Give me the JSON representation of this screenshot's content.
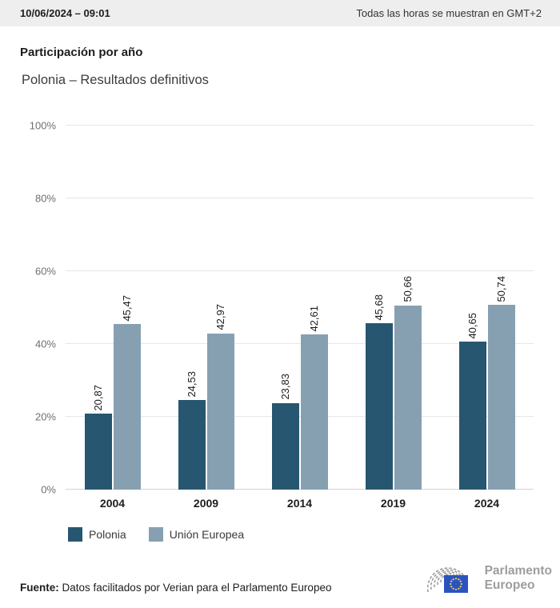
{
  "header": {
    "datetime": "10/06/2024 – 09:01",
    "timezone_note": "Todas las horas se muestran en GMT+2"
  },
  "title": "Participación por año",
  "subtitle": "Polonia – Resultados definitivos",
  "chart_data": {
    "type": "bar",
    "title": "Participación por año",
    "subtitle": "Polonia – Resultados definitivos",
    "categories": [
      "2004",
      "2009",
      "2014",
      "2019",
      "2024"
    ],
    "series": [
      {
        "name": "Polonia",
        "color": "#275670",
        "values": [
          20.87,
          24.53,
          23.83,
          45.68,
          40.65
        ]
      },
      {
        "name": "Unión Europea",
        "color": "#86a0b2",
        "values": [
          45.47,
          42.97,
          42.61,
          50.66,
          50.74
        ]
      }
    ],
    "display_values": [
      [
        "20,87",
        "24,53",
        "23,83",
        "45,68",
        "40,65"
      ],
      [
        "45,47",
        "42,97",
        "42,61",
        "50,66",
        "50,74"
      ]
    ],
    "xlabel": "",
    "ylabel": "",
    "ylim": [
      0,
      100
    ],
    "yticks": [
      {
        "value": 0,
        "label": "0%"
      },
      {
        "value": 20,
        "label": "20%"
      },
      {
        "value": 40,
        "label": "40%"
      },
      {
        "value": 60,
        "label": "60%"
      },
      {
        "value": 80,
        "label": "80%"
      },
      {
        "value": 100,
        "label": "100%"
      }
    ],
    "grid": true,
    "legend_position": "bottom-left"
  },
  "footer": {
    "source_label": "Fuente:",
    "source_text": "Datos facilitados por Verian para el Parlamento Europeo",
    "logo_line1": "Parlamento",
    "logo_line2": "Europeo"
  },
  "colors": {
    "header_background": "#eeeeee",
    "gridline": "#e7e7e7",
    "axis_line": "#d4d4d4",
    "tick_text": "#6f6f6f",
    "logo_gray": "#9d9d9c",
    "flag_blue": "#2b53c0",
    "flag_stars": "#e8d44d"
  }
}
